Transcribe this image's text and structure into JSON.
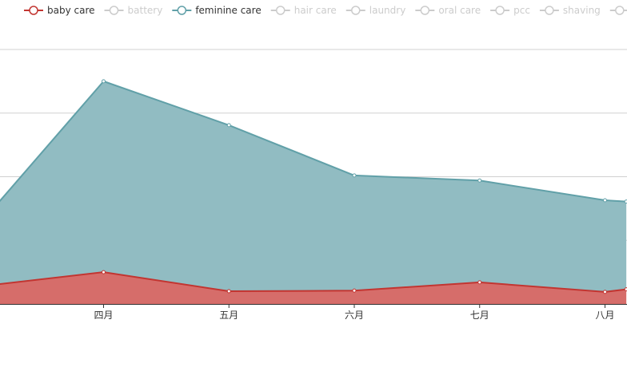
{
  "chart_data": {
    "type": "area",
    "stacked": true,
    "categories": [
      "四月",
      "五月",
      "六月",
      "七月",
      "八月"
    ],
    "x_positions": [
      0.5,
      1.5,
      2.5,
      3.5,
      4.5
    ],
    "ylim": [
      0,
      40
    ],
    "grid": {
      "horizontal": true,
      "vertical": false
    },
    "legend": {
      "placement": "top",
      "items": [
        {
          "name": "baby care",
          "active": true,
          "color": "#c23531"
        },
        {
          "name": "battery",
          "active": false,
          "color": "#cccccc"
        },
        {
          "name": "feminine care",
          "active": true,
          "color": "#61a0a8"
        },
        {
          "name": "hair care",
          "active": false,
          "color": "#cccccc"
        },
        {
          "name": "laundry",
          "active": false,
          "color": "#cccccc"
        },
        {
          "name": "oral care",
          "active": false,
          "color": "#cccccc"
        },
        {
          "name": "pcc",
          "active": false,
          "color": "#cccccc"
        },
        {
          "name": "shaving",
          "active": false,
          "color": "#cccccc"
        },
        {
          "name": "skin",
          "active": false,
          "color": "#cccccc"
        }
      ]
    },
    "series": [
      {
        "name": "baby care",
        "color": "#c23531",
        "fill": "#d66d6a",
        "x": [
          -0.34,
          0.5,
          1.5,
          2.5,
          3.5,
          4.5,
          4.67
        ],
        "values": [
          3.1,
          5.0,
          2.0,
          2.1,
          3.4,
          1.9,
          2.3
        ]
      },
      {
        "name": "feminine care",
        "color": "#61a0a8",
        "fill": "#91bcc2",
        "x": [
          -0.34,
          0.5,
          1.5,
          2.5,
          3.5,
          4.5,
          4.67
        ],
        "values": [
          12.8,
          30.0,
          26.1,
          18.1,
          16.0,
          14.4,
          13.8
        ]
      }
    ]
  }
}
